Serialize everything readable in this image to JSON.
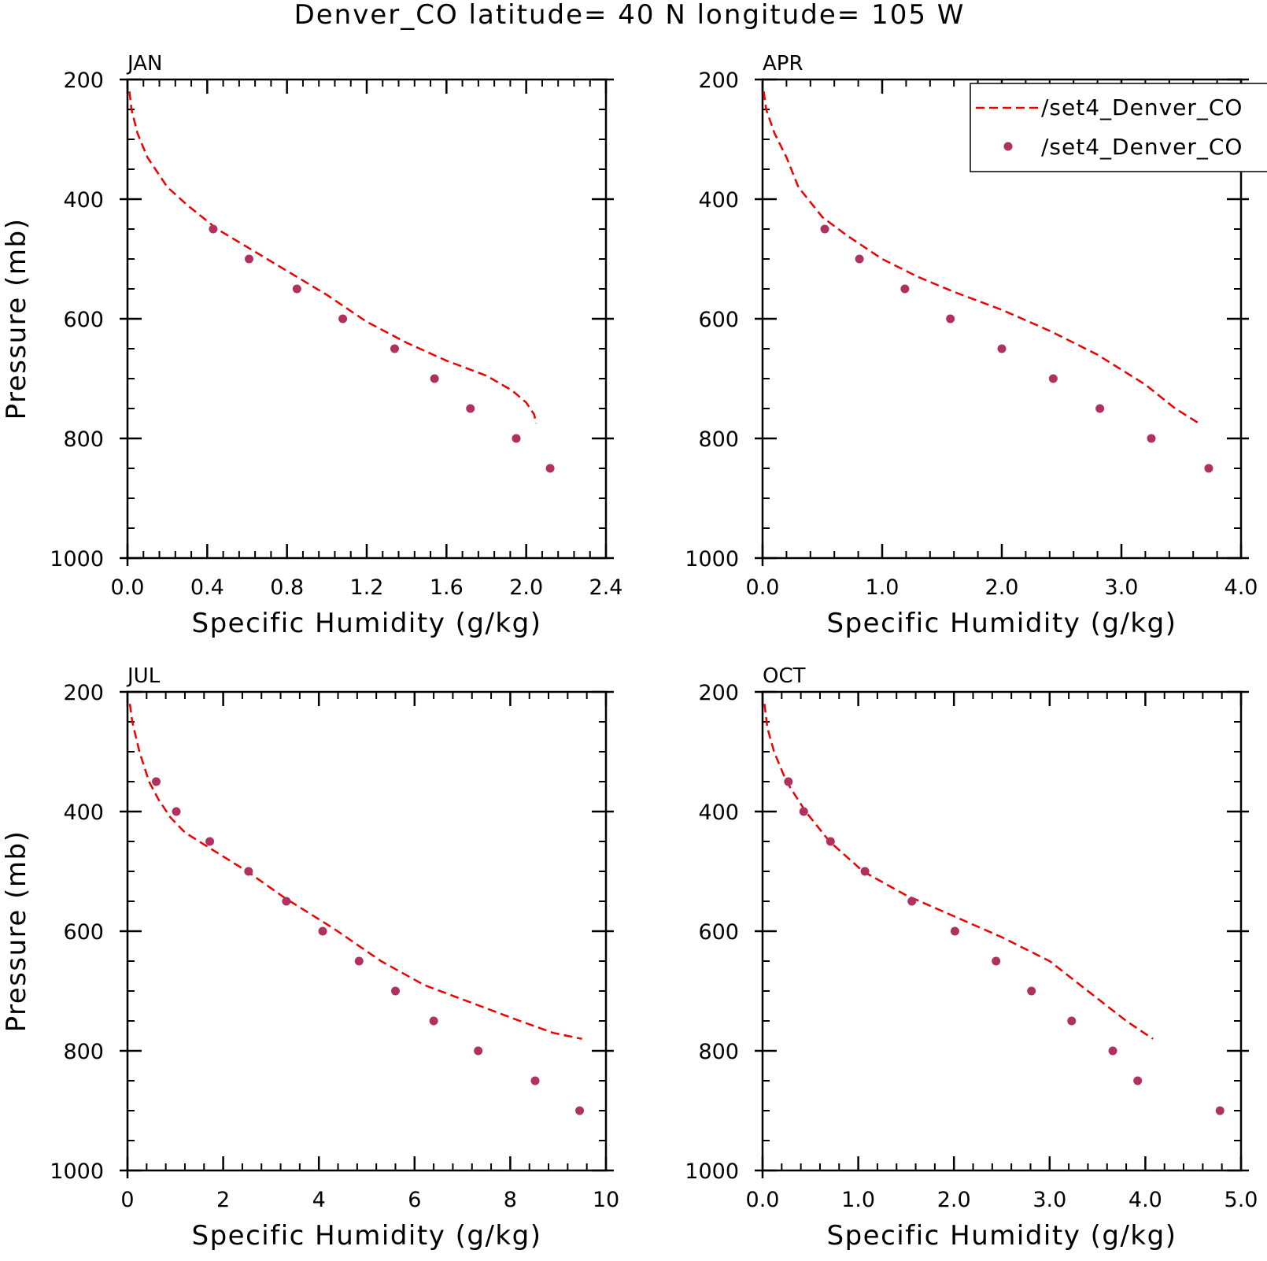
{
  "title": "Denver_CO  latitude= 40 N longitude= 105 W",
  "colors": {
    "model_line": "#ee0000",
    "obs_marker": "#b03060",
    "axes": "#000000"
  },
  "legend": {
    "placement": "top-right of APR panel",
    "entries": [
      {
        "label": "/set4_Denver_CO",
        "style": "dashed-line"
      },
      {
        "label": "/set4_Denver_CO",
        "style": "dot"
      }
    ]
  },
  "chart_data": [
    {
      "type": "line",
      "panel": "JAN",
      "title": "JAN",
      "xlabel": "Specific Humidity (g/kg)",
      "ylabel": "Pressure (mb)",
      "xlim": [
        0,
        2.4
      ],
      "ylim": [
        1000,
        200
      ],
      "xticks": [
        0,
        0.4,
        0.8,
        1.2,
        1.6,
        2.0,
        2.4
      ],
      "xtick_labels": [
        "0.0",
        "0.4",
        "0.8",
        "1.2",
        "1.6",
        "2.0",
        "2.4"
      ],
      "yticks": [
        200,
        400,
        600,
        800,
        1000
      ],
      "ytick_labels": [
        "200",
        "400",
        "600",
        "800",
        "1000"
      ],
      "grid": false,
      "series": [
        {
          "style": "dashed-line",
          "x": [
            0.01,
            0.02,
            0.05,
            0.1,
            0.2,
            0.3,
            0.45,
            0.6,
            0.8,
            1.0,
            1.2,
            1.4,
            1.6,
            1.8,
            1.93,
            2.0,
            2.04,
            2.05
          ],
          "y": [
            220,
            250,
            290,
            330,
            380,
            410,
            450,
            480,
            520,
            560,
            605,
            640,
            670,
            695,
            720,
            740,
            760,
            775
          ]
        },
        {
          "style": "dot",
          "x": [
            0.43,
            0.61,
            0.85,
            1.08,
            1.34,
            1.54,
            1.72,
            1.95,
            2.12
          ],
          "y": [
            450,
            500,
            550,
            600,
            650,
            700,
            750,
            800,
            850
          ]
        }
      ]
    },
    {
      "type": "line",
      "panel": "APR",
      "title": "APR",
      "xlabel": "Specific Humidity (g/kg)",
      "ylabel": "",
      "xlim": [
        0,
        4.0
      ],
      "ylim": [
        1000,
        200
      ],
      "xticks": [
        0,
        1,
        2,
        3,
        4
      ],
      "xtick_labels": [
        "0.0",
        "1.0",
        "2.0",
        "3.0",
        "4.0"
      ],
      "yticks": [
        200,
        400,
        600,
        800,
        1000
      ],
      "ytick_labels": [
        "200",
        "400",
        "600",
        "800",
        "1000"
      ],
      "grid": false,
      "series": [
        {
          "style": "dashed-line",
          "x": [
            0.01,
            0.03,
            0.1,
            0.2,
            0.3,
            0.5,
            0.7,
            1.0,
            1.3,
            1.6,
            2.0,
            2.4,
            2.8,
            3.2,
            3.45,
            3.65
          ],
          "y": [
            220,
            250,
            290,
            330,
            380,
            430,
            460,
            500,
            530,
            555,
            585,
            620,
            660,
            710,
            750,
            775
          ]
        },
        {
          "style": "dot",
          "x": [
            0.52,
            0.81,
            1.19,
            1.57,
            2.0,
            2.43,
            2.82,
            3.25,
            3.73
          ],
          "y": [
            450,
            500,
            550,
            600,
            650,
            700,
            750,
            800,
            850
          ]
        }
      ]
    },
    {
      "type": "line",
      "panel": "JUL",
      "title": "JUL",
      "xlabel": "Specific Humidity (g/kg)",
      "ylabel": "Pressure (mb)",
      "xlim": [
        0,
        10
      ],
      "ylim": [
        1000,
        200
      ],
      "xticks": [
        0,
        2,
        4,
        6,
        8,
        10
      ],
      "xtick_labels": [
        "0",
        "2",
        "4",
        "6",
        "8",
        "10"
      ],
      "yticks": [
        200,
        400,
        600,
        800,
        1000
      ],
      "ytick_labels": [
        "200",
        "400",
        "600",
        "800",
        "1000"
      ],
      "grid": false,
      "series": [
        {
          "style": "dashed-line",
          "x": [
            0.05,
            0.1,
            0.25,
            0.45,
            0.65,
            0.9,
            1.2,
            1.8,
            2.5,
            3.3,
            4.3,
            5.3,
            6.2,
            7.2,
            8.2,
            8.9,
            9.5
          ],
          "y": [
            220,
            250,
            300,
            350,
            380,
            410,
            435,
            465,
            500,
            545,
            595,
            650,
            690,
            720,
            750,
            770,
            780
          ]
        },
        {
          "style": "dot",
          "x": [
            0.6,
            1.02,
            1.72,
            2.53,
            3.32,
            4.08,
            4.84,
            5.6,
            6.4,
            7.33,
            8.52,
            9.45
          ],
          "y": [
            350,
            400,
            450,
            500,
            550,
            600,
            650,
            700,
            750,
            800,
            850,
            900
          ]
        }
      ]
    },
    {
      "type": "line",
      "panel": "OCT",
      "title": "OCT",
      "xlabel": "Specific Humidity (g/kg)",
      "ylabel": "",
      "xlim": [
        0,
        5.0
      ],
      "ylim": [
        1000,
        200
      ],
      "xticks": [
        0,
        1,
        2,
        3,
        4,
        5
      ],
      "xtick_labels": [
        "0.0",
        "1.0",
        "2.0",
        "3.0",
        "4.0",
        "5.0"
      ],
      "yticks": [
        200,
        400,
        600,
        800,
        1000
      ],
      "ytick_labels": [
        "200",
        "400",
        "600",
        "800",
        "1000"
      ],
      "grid": false,
      "series": [
        {
          "style": "dashed-line",
          "x": [
            0.02,
            0.05,
            0.12,
            0.25,
            0.45,
            0.7,
            1.05,
            1.5,
            2.0,
            2.5,
            3.0,
            3.4,
            3.8,
            4.08
          ],
          "y": [
            220,
            260,
            300,
            350,
            400,
            450,
            500,
            540,
            575,
            610,
            650,
            700,
            750,
            780
          ]
        },
        {
          "style": "dot",
          "x": [
            0.27,
            0.43,
            0.71,
            1.07,
            1.56,
            2.01,
            2.44,
            2.81,
            3.23,
            3.66,
            3.92,
            4.78
          ],
          "y": [
            350,
            400,
            450,
            500,
            550,
            600,
            650,
            700,
            750,
            800,
            850,
            900
          ]
        }
      ]
    }
  ]
}
